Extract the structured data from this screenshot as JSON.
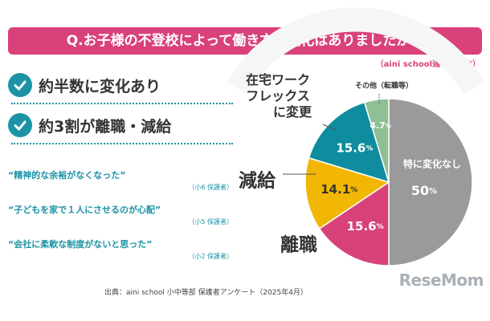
{
  "header": {
    "question": "Q.お子様の不登校によって働き方に変化はありましたか？",
    "scope": "（aini school通学前含む）"
  },
  "findings": [
    {
      "text": "約半数に変化あり"
    },
    {
      "text": "約3割が離職・減給"
    }
  ],
  "quotes": [
    {
      "quote": "“精神的な余裕がなくなった”",
      "who": "（小6 保護者）"
    },
    {
      "quote": "“子どもを家で１人にさせるのが心配”",
      "who": "（小5 保護者）"
    },
    {
      "quote": "“会社に柔軟な制度がないと思った”",
      "who": "（小2 保護者）"
    }
  ],
  "chart_data": {
    "type": "pie",
    "slices": [
      {
        "label": "特に変化なし",
        "value": 50,
        "display": "50",
        "color": "#9a9a9a"
      },
      {
        "label": "離職",
        "value": 15.6,
        "display": "15.6",
        "color": "#d9417a"
      },
      {
        "label": "減給",
        "value": 14.1,
        "display": "14.1",
        "color": "#f2b705"
      },
      {
        "label_lines": [
          "在宅ワーク",
          "フレックス",
          "に変更"
        ],
        "value": 15.6,
        "display": "15.6",
        "color": "#0f8c9e"
      },
      {
        "label": "その他（転職等）",
        "value": 4.7,
        "display": "4.7",
        "color": "#8fbf94"
      }
    ],
    "unit": "%"
  },
  "footer": {
    "source": "出典：aini school 小中等部 保護者アンケート（2025年4月）",
    "logo": "ReseMom"
  }
}
